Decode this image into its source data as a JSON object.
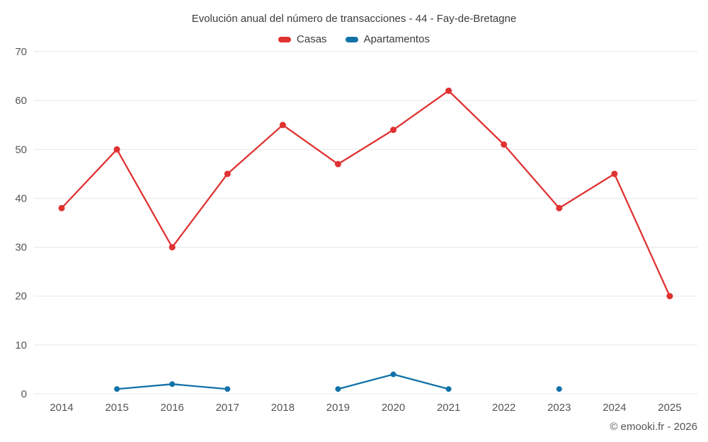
{
  "title": "Evolución anual del número de transacciones - 44 - Fay-de-Bretagne",
  "footer": "© emooki.fr - 2026",
  "colors": {
    "casas": "#e03232",
    "apartamentos": "#1272a8",
    "grid": "#e6e6e6",
    "axis_text": "#555555",
    "background": "#ffffff"
  },
  "chart_data": {
    "type": "line",
    "categories": [
      "2014",
      "2015",
      "2016",
      "2017",
      "2018",
      "2019",
      "2020",
      "2021",
      "2022",
      "2023",
      "2024",
      "2025"
    ],
    "series": [
      {
        "name": "Casas",
        "color": "#e03232",
        "values": [
          38,
          50,
          30,
          45,
          55,
          47,
          54,
          62,
          51,
          38,
          45,
          20
        ]
      },
      {
        "name": "Apartamentos",
        "color": "#1272a8",
        "values": [
          null,
          1,
          2,
          1,
          null,
          1,
          4,
          1,
          null,
          1,
          null,
          null
        ]
      }
    ],
    "title": "Evolución anual del número de transacciones - 44 - Fay-de-Bretagne",
    "xlabel": "",
    "ylabel": "",
    "ylim": [
      0,
      70
    ],
    "yticks": [
      0,
      10,
      20,
      30,
      40,
      50,
      60,
      70
    ],
    "grid": true,
    "legend_position": "top"
  }
}
